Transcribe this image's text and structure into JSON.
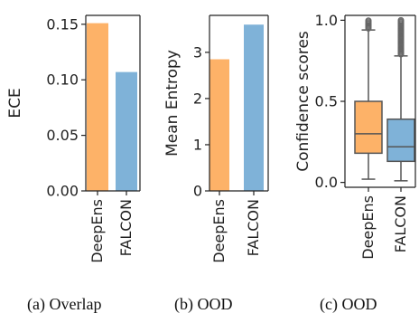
{
  "colors": {
    "DeepEns": "#fdb268",
    "FALCON": "#7fb2d8",
    "box_line": "#555555",
    "axis": "#222222"
  },
  "chart_data": [
    {
      "type": "bar",
      "caption": "(a) Overlap",
      "ylabel": "ECE",
      "categories": [
        "DeepEns",
        "FALCON"
      ],
      "values": [
        0.151,
        0.107
      ],
      "ylim": [
        0,
        0.158
      ],
      "yticks": [
        0.0,
        0.05,
        0.1,
        0.15
      ],
      "ytick_labels": [
        "0.00",
        "0.05",
        "0.10",
        "0.15"
      ],
      "grid": false
    },
    {
      "type": "bar",
      "caption": "(b) OOD",
      "ylabel": "Mean Entropy",
      "categories": [
        "DeepEns",
        "FALCON"
      ],
      "values": [
        2.85,
        3.6
      ],
      "ylim": [
        0,
        3.8
      ],
      "yticks": [
        0,
        1,
        2,
        3
      ],
      "ytick_labels": [
        "0",
        "1",
        "2",
        "3"
      ],
      "grid": false
    },
    {
      "type": "box",
      "caption": "(c) OOD",
      "ylabel": "Confidence scores",
      "categories": [
        "DeepEns",
        "FALCON"
      ],
      "boxes": [
        {
          "whislo": 0.02,
          "q1": 0.18,
          "med": 0.3,
          "q3": 0.5,
          "whishi": 0.94,
          "fliers_from": 0.95,
          "fliers_to": 1.0
        },
        {
          "whislo": 0.01,
          "q1": 0.13,
          "med": 0.22,
          "q3": 0.39,
          "whishi": 0.78,
          "fliers_from": 0.79,
          "fliers_to": 1.0
        }
      ],
      "ylim": [
        -0.03,
        1.03
      ],
      "yticks": [
        0.0,
        0.5,
        1.0
      ],
      "ytick_labels": [
        "0.0",
        "0.5",
        "1.0"
      ],
      "grid": false
    }
  ]
}
